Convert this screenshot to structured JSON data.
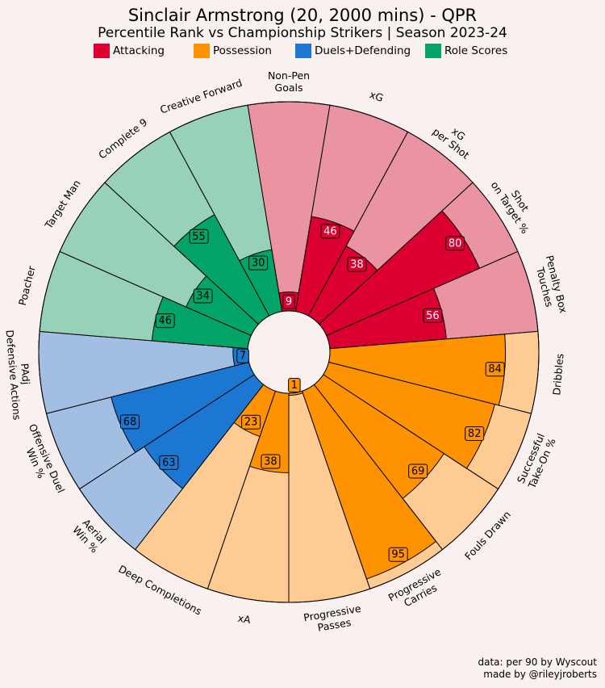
{
  "chart_data": {
    "type": "radial-bar",
    "title": "Sinclair Armstrong (20, 2000 mins) - QPR",
    "subtitle": "Percentile Rank vs Championship Strikers | Season 2023-24",
    "rlim": [
      0,
      100
    ],
    "legend": [
      {
        "label": "Attacking",
        "color": "#dc0031"
      },
      {
        "label": "Possession",
        "color": "#ff9200"
      },
      {
        "label": "Duels+Defending",
        "color": "#1c77d2"
      },
      {
        "label": "Role Scores",
        "color": "#02a467"
      }
    ],
    "categories": [
      {
        "label": "Non-Pen\nGoals",
        "value": 9,
        "group": "Attacking"
      },
      {
        "label": "xG",
        "value": 46,
        "group": "Attacking"
      },
      {
        "label": "xG\nper Shot",
        "value": 38,
        "group": "Attacking"
      },
      {
        "label": "Shot\non Target %",
        "value": 80,
        "group": "Attacking"
      },
      {
        "label": "Penalty Box\nTouches",
        "value": 56,
        "group": "Attacking"
      },
      {
        "label": "Dribbles",
        "value": 84,
        "group": "Possession"
      },
      {
        "label": "Successful\nTake-On %",
        "value": 82,
        "group": "Possession"
      },
      {
        "label": "Fouls Drawn",
        "value": 69,
        "group": "Possession"
      },
      {
        "label": "Progressive\nCarries",
        "value": 95,
        "group": "Possession"
      },
      {
        "label": "Progressive\nPasses",
        "value": 1,
        "group": "Possession"
      },
      {
        "label": "xA",
        "value": 38,
        "group": "Possession"
      },
      {
        "label": "Deep Completions",
        "value": 23,
        "group": "Possession"
      },
      {
        "label": "Aerial\nWin %",
        "value": 63,
        "group": "Duels+Defending"
      },
      {
        "label": "Offensive Duel\nWin %",
        "value": 68,
        "group": "Duels+Defending"
      },
      {
        "label": "PAdj\nDefensive Actions",
        "value": 7,
        "group": "Duels+Defending"
      },
      {
        "label": "Poacher",
        "value": 46,
        "group": "Role Scores"
      },
      {
        "label": "Target Man",
        "value": 34,
        "group": "Role Scores"
      },
      {
        "label": "Complete 9",
        "value": 55,
        "group": "Role Scores"
      },
      {
        "label": "Creative Forward",
        "value": 30,
        "group": "Role Scores"
      }
    ],
    "background_colors": {
      "Attacking": "#ea93a2",
      "Possession": "#fecb92",
      "Duels+Defending": "#a2bfe3",
      "Role Scores": "#97d1b8"
    },
    "value_text_colors": {
      "Attacking": "#ffffff",
      "Possession": "#000000",
      "Duels+Defending": "#000000",
      "Role Scores": "#000000"
    }
  },
  "footer": {
    "line1": "data: per 90 by Wyscout",
    "line2": "made by @rileyjroberts"
  }
}
